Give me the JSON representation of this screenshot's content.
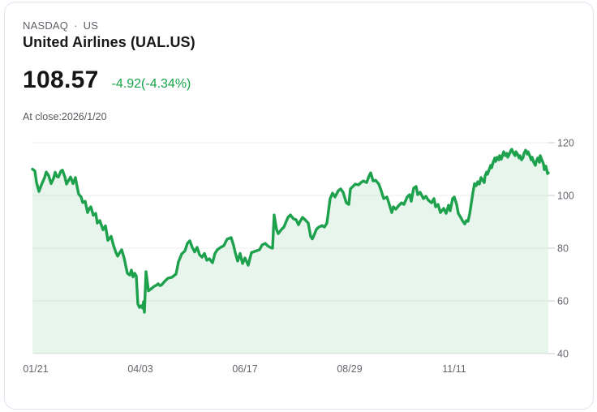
{
  "header": {
    "exchange": "NASDAQ",
    "separator": "·",
    "region": "US",
    "title": "United Airlines (UAL.US)"
  },
  "quote": {
    "price": "108.57",
    "change": "-4.92(-4.34%)",
    "change_color": "#17a34a",
    "close_note": "At close:2026/1/20"
  },
  "colors": {
    "line": "#1ea14c",
    "fill": "rgba(30,160,75,0.10)",
    "grid": "#ececec",
    "grid_bottom": "#e3e3e3",
    "tick": "#c9cbce",
    "axis_text": "#63666c"
  },
  "chart_data": {
    "type": "area",
    "title": "",
    "xlabel": "",
    "ylabel": "",
    "x_tick_labels": [
      "01/21",
      "04/03",
      "06/17",
      "08/29",
      "11/11"
    ],
    "y_tick_labels": [
      "120",
      "100",
      "80",
      "60",
      "40"
    ],
    "y_ticks": [
      120,
      100,
      80,
      60,
      40
    ],
    "ylim": [
      40,
      120
    ],
    "grid": true,
    "legend": "none",
    "last_price": 108.57,
    "points": [
      [
        40,
        110.0
      ],
      [
        43,
        109.3
      ],
      [
        45,
        105.0
      ],
      [
        48,
        101.5
      ],
      [
        51,
        104.0
      ],
      [
        55,
        106.8
      ],
      [
        57,
        108.9
      ],
      [
        60,
        107.5
      ],
      [
        63,
        104.5
      ],
      [
        66,
        106.5
      ],
      [
        68,
        108.8
      ],
      [
        70,
        107.3
      ],
      [
        72,
        107.0
      ],
      [
        75,
        109.2
      ],
      [
        77,
        109.6
      ],
      [
        80,
        107.0
      ],
      [
        82,
        104.3
      ],
      [
        85,
        106.0
      ],
      [
        87,
        107.0
      ],
      [
        90,
        104.5
      ],
      [
        93,
        106.8
      ],
      [
        95,
        103.4
      ],
      [
        97,
        100.5
      ],
      [
        100,
        99.4
      ],
      [
        102,
        97.3
      ],
      [
        105,
        97.8
      ],
      [
        108,
        93.5
      ],
      [
        110,
        95.0
      ],
      [
        112,
        95.7
      ],
      [
        115,
        92.5
      ],
      [
        118,
        93.2
      ],
      [
        120,
        89.5
      ],
      [
        123,
        90.5
      ],
      [
        127,
        87.0
      ],
      [
        130,
        88.5
      ],
      [
        133,
        83.0
      ],
      [
        137,
        84.5
      ],
      [
        140,
        81.0
      ],
      [
        143,
        78.3
      ],
      [
        145,
        77.0
      ],
      [
        148,
        78.5
      ],
      [
        150,
        79.4
      ],
      [
        153,
        76.3
      ],
      [
        157,
        70.5
      ],
      [
        160,
        69.8
      ],
      [
        162,
        71.7
      ],
      [
        164,
        69.1
      ],
      [
        166,
        70.5
      ],
      [
        168,
        69.5
      ],
      [
        170,
        58.8
      ],
      [
        172,
        57.5
      ],
      [
        174,
        58.2
      ],
      [
        176,
        57.2
      ],
      [
        177,
        59.7
      ],
      [
        178,
        55.7
      ],
      [
        180,
        71.1
      ],
      [
        183,
        63.8
      ],
      [
        186,
        64.5
      ],
      [
        190,
        65.5
      ],
      [
        193,
        66.0
      ],
      [
        195,
        66.5
      ],
      [
        197,
        65.8
      ],
      [
        199,
        66.0
      ],
      [
        203,
        67.4
      ],
      [
        207,
        68.6
      ],
      [
        212,
        69.0
      ],
      [
        217,
        70.2
      ],
      [
        220,
        74.8
      ],
      [
        224,
        77.8
      ],
      [
        228,
        79.0
      ],
      [
        231,
        81.8
      ],
      [
        234,
        82.8
      ],
      [
        237,
        80.3
      ],
      [
        240,
        78.6
      ],
      [
        243,
        80.3
      ],
      [
        246,
        77.5
      ],
      [
        249,
        76.6
      ],
      [
        252,
        78.0
      ],
      [
        255,
        75.4
      ],
      [
        258,
        76.0
      ],
      [
        262,
        74.5
      ],
      [
        265,
        78.0
      ],
      [
        268,
        79.4
      ],
      [
        272,
        80.3
      ],
      [
        276,
        81.0
      ],
      [
        280,
        83.4
      ],
      [
        285,
        84.0
      ],
      [
        288,
        81.0
      ],
      [
        290,
        78.3
      ],
      [
        293,
        75.1
      ],
      [
        296,
        78.0
      ],
      [
        299,
        74.2
      ],
      [
        302,
        76.3
      ],
      [
        306,
        73.5
      ],
      [
        310,
        78.3
      ],
      [
        315,
        78.9
      ],
      [
        320,
        79.4
      ],
      [
        323,
        81.2
      ],
      [
        327,
        81.8
      ],
      [
        330,
        80.9
      ],
      [
        333,
        80.3
      ],
      [
        336,
        80.0
      ],
      [
        338,
        92.6
      ],
      [
        341,
        87.0
      ],
      [
        343,
        85.5
      ],
      [
        347,
        87.1
      ],
      [
        350,
        88.0
      ],
      [
        355,
        91.7
      ],
      [
        358,
        92.6
      ],
      [
        362,
        91.1
      ],
      [
        365,
        90.8
      ],
      [
        368,
        88.9
      ],
      [
        370,
        90.2
      ],
      [
        373,
        91.7
      ],
      [
        377,
        90.5
      ],
      [
        380,
        89.5
      ],
      [
        383,
        84.5
      ],
      [
        385,
        83.5
      ],
      [
        387,
        84.8
      ],
      [
        390,
        87.1
      ],
      [
        393,
        88.0
      ],
      [
        397,
        88.6
      ],
      [
        400,
        88.0
      ],
      [
        403,
        89.5
      ],
      [
        407,
        98.8
      ],
      [
        410,
        100.9
      ],
      [
        413,
        99.4
      ],
      [
        417,
        101.8
      ],
      [
        420,
        102.5
      ],
      [
        423,
        101.2
      ],
      [
        427,
        97.2
      ],
      [
        430,
        96.6
      ],
      [
        432,
        102.5
      ],
      [
        435,
        103.4
      ],
      [
        438,
        104.3
      ],
      [
        442,
        104.0
      ],
      [
        445,
        104.9
      ],
      [
        448,
        105.5
      ],
      [
        452,
        104.9
      ],
      [
        455,
        107.4
      ],
      [
        457,
        108.6
      ],
      [
        460,
        105.5
      ],
      [
        463,
        105.8
      ],
      [
        467,
        104.3
      ],
      [
        470,
        101.8
      ],
      [
        473,
        98.8
      ],
      [
        477,
        99.4
      ],
      [
        480,
        96.6
      ],
      [
        483,
        93.5
      ],
      [
        485,
        95.7
      ],
      [
        488,
        94.8
      ],
      [
        492,
        96.3
      ],
      [
        495,
        97.2
      ],
      [
        498,
        96.6
      ],
      [
        502,
        99.4
      ],
      [
        505,
        100.3
      ],
      [
        507,
        97.8
      ],
      [
        510,
        102.8
      ],
      [
        513,
        103.4
      ],
      [
        515,
        100.3
      ],
      [
        518,
        101.2
      ],
      [
        522,
        98.8
      ],
      [
        525,
        99.7
      ],
      [
        528,
        98.2
      ],
      [
        532,
        97.2
      ],
      [
        535,
        98.8
      ],
      [
        537,
        95.7
      ],
      [
        540,
        96.6
      ],
      [
        543,
        93.5
      ],
      [
        547,
        95.1
      ],
      [
        550,
        93.2
      ],
      [
        553,
        96.3
      ],
      [
        555,
        94.2
      ],
      [
        558,
        98.8
      ],
      [
        560,
        99.4
      ],
      [
        563,
        96.6
      ],
      [
        565,
        93.2
      ],
      [
        568,
        91.7
      ],
      [
        570,
        90.5
      ],
      [
        573,
        89.2
      ],
      [
        575,
        90.5
      ],
      [
        577,
        90.2
      ],
      [
        579,
        93.0
      ],
      [
        581,
        97.0
      ],
      [
        583,
        101.0
      ],
      [
        585,
        104.5
      ],
      [
        587,
        103.7
      ],
      [
        589,
        105.2
      ],
      [
        591,
        104.3
      ],
      [
        593,
        106.8
      ],
      [
        595,
        105.8
      ],
      [
        597,
        104.9
      ],
      [
        598,
        107.4
      ],
      [
        600,
        108.9
      ],
      [
        601,
        108.0
      ],
      [
        603,
        109.8
      ],
      [
        605,
        111.4
      ],
      [
        606,
        110.5
      ],
      [
        608,
        112.6
      ],
      [
        610,
        114.2
      ],
      [
        611,
        112.9
      ],
      [
        613,
        114.5
      ],
      [
        615,
        113.5
      ],
      [
        616,
        115.1
      ],
      [
        618,
        113.8
      ],
      [
        620,
        115.7
      ],
      [
        621,
        116.6
      ],
      [
        623,
        115.1
      ],
      [
        625,
        116.0
      ],
      [
        626,
        114.5
      ],
      [
        628,
        115.7
      ],
      [
        630,
        117.2
      ],
      [
        631,
        117.5
      ],
      [
        633,
        116.0
      ],
      [
        635,
        115.1
      ],
      [
        636,
        116.6
      ],
      [
        638,
        115.7
      ],
      [
        640,
        114.2
      ],
      [
        641,
        115.1
      ],
      [
        643,
        113.5
      ],
      [
        645,
        114.5
      ],
      [
        646,
        116.0
      ],
      [
        648,
        117.2
      ],
      [
        650,
        115.7
      ],
      [
        651,
        116.6
      ],
      [
        653,
        115.1
      ],
      [
        655,
        113.5
      ],
      [
        656,
        114.5
      ],
      [
        658,
        112.6
      ],
      [
        660,
        111.4
      ],
      [
        661,
        112.9
      ],
      [
        663,
        114.2
      ],
      [
        665,
        112.6
      ],
      [
        666,
        115.1
      ],
      [
        668,
        113.5
      ],
      [
        670,
        112.0
      ],
      [
        671,
        109.8
      ],
      [
        673,
        111.1
      ],
      [
        675,
        108.3
      ],
      [
        676,
        108.57
      ]
    ]
  }
}
